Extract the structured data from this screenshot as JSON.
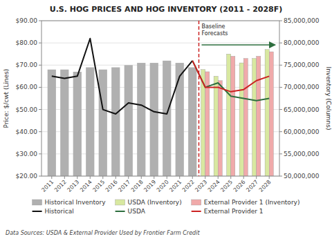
{
  "chart_data": {
    "type": "bar",
    "title": "U.S. HOG PRICES AND HOG INVENTORY (2011 - 2028F)",
    "subtitle": "Data Sources: USDA & External Provider Used by Frontier Farm Credit",
    "y_label": "Price: $/cwt (Lines)",
    "y2_label": "Inventory (Columns)",
    "x": [
      2011,
      2012,
      2013,
      2014,
      2015,
      2016,
      2017,
      2018,
      2019,
      2020,
      2021,
      2022,
      2023,
      2024,
      2025,
      2026,
      2027,
      2028
    ],
    "xlim": [
      2010.2,
      2028.8
    ],
    "xticks": [
      2011,
      2012,
      2013,
      2014,
      2015,
      2016,
      2017,
      2018,
      2019,
      2020,
      2021,
      2022,
      2023,
      2024,
      2025,
      2026,
      2027,
      2028
    ],
    "ylim": [
      20,
      90
    ],
    "yticks": [
      {
        "value": 20,
        "label": "$20.00"
      },
      {
        "value": 30,
        "label": "$30.00"
      },
      {
        "value": 40,
        "label": "$40.00"
      },
      {
        "value": 50,
        "label": "$50.00"
      },
      {
        "value": 60,
        "label": "$60.00"
      },
      {
        "value": 70,
        "label": "$70.00"
      },
      {
        "value": 80,
        "label": "$80.00"
      },
      {
        "value": 90,
        "label": "$90.00"
      }
    ],
    "y2lim": [
      50000000,
      85000000
    ],
    "y2ticks": [
      {
        "value": 50000000,
        "label": "50,000,000"
      },
      {
        "value": 55000000,
        "label": "55,000,000"
      },
      {
        "value": 60000000,
        "label": "60,000,000"
      },
      {
        "value": 65000000,
        "label": "65,000,000"
      },
      {
        "value": 70000000,
        "label": "70,000,000"
      },
      {
        "value": 75000000,
        "label": "75,000,000"
      },
      {
        "value": 80000000,
        "label": "80,000,000"
      },
      {
        "value": 85000000,
        "label": "85,000,000"
      }
    ],
    "grid": true,
    "legend": "bottom",
    "series": [
      {
        "name": "Historical Inventory",
        "type": "bar",
        "axis": "y2",
        "color": "#b0b0b0",
        "values": [
          74000000,
          74000000,
          73500000,
          74500000,
          74000000,
          74500000,
          75000000,
          75500000,
          75500000,
          76000000,
          75500000,
          74500000,
          null,
          null,
          null,
          null,
          null,
          null
        ]
      },
      {
        "name": "USDA (Inventory)",
        "type": "bar",
        "axis": "y2",
        "color": "#d8e8a0",
        "values": [
          null,
          null,
          null,
          null,
          null,
          null,
          null,
          null,
          null,
          null,
          null,
          null,
          74000000,
          72500000,
          77500000,
          75500000,
          76500000,
          78500000
        ]
      },
      {
        "name": "External Provider 1 (Inventory)",
        "type": "bar",
        "axis": "y2",
        "color": "#f0aaaa",
        "values": [
          null,
          null,
          null,
          null,
          null,
          null,
          null,
          null,
          null,
          null,
          null,
          null,
          73500000,
          71500000,
          77000000,
          76500000,
          77000000,
          78000000
        ]
      },
      {
        "name": "Historical",
        "type": "line",
        "color": "#111111",
        "values": [
          65,
          64,
          65,
          82,
          50,
          48,
          53,
          52,
          49,
          48,
          65,
          72,
          null,
          null,
          null,
          null,
          null,
          null
        ]
      },
      {
        "name": "USDA",
        "type": "line",
        "color": "#2d6e3e",
        "values": [
          null,
          null,
          null,
          null,
          null,
          null,
          null,
          null,
          null,
          null,
          null,
          72,
          60,
          62,
          56,
          55,
          54,
          55
        ]
      },
      {
        "name": "External Provider 1",
        "type": "line",
        "color": "#cc2222",
        "values": [
          null,
          null,
          null,
          null,
          null,
          null,
          null,
          null,
          null,
          null,
          null,
          72,
          60,
          60,
          58,
          59,
          63,
          65
        ]
      }
    ],
    "annotations": [
      {
        "text": "Baseline\nForecasts",
        "x": 2022.5,
        "color": "#cc2222"
      }
    ]
  }
}
